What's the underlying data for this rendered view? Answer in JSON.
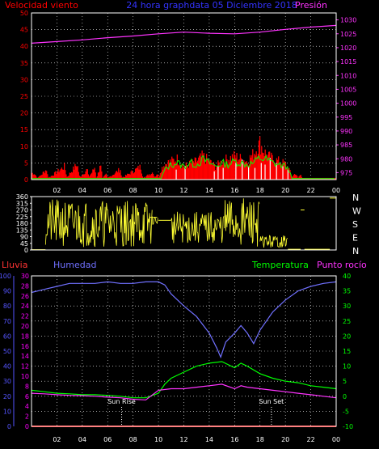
{
  "colors": {
    "background": "#000000",
    "frame": "#ffffff",
    "grid": "#ffffff",
    "wind": "#ff0000",
    "gust": "#ffffff",
    "avg": "#00ff00",
    "pressure": "#ff33ff",
    "direction": "#ffff33",
    "rain": "#ff0000",
    "humidity": "#7070ff",
    "temperature": "#00ff00",
    "dewpoint": "#ff33ff",
    "left_axis": "#5555ff",
    "hum_axis": "#ff00ff",
    "temp_axis": "#00ff00",
    "events": "#ffffff"
  },
  "header": {
    "wind_label": "Velocidad viento",
    "title": "24 hora graphdata  05 Diciembre  2018",
    "pressure_label": "Presión"
  },
  "panel3_header": {
    "rain_label": "Lluvia",
    "humidity_label": "Humedad",
    "temp_label": "Temperatura",
    "dew_label": "Punto rocío"
  },
  "events": {
    "sunrise_label": "Sun Rise",
    "sunset_label": "Sun Set",
    "sunrise_hour": 7.1,
    "sunset_hour": 18.9
  },
  "chart_data": [
    {
      "type": "line",
      "name": "wind-pressure",
      "x_range": [
        0,
        24
      ],
      "x_ticks": [
        "02",
        "04",
        "06",
        "08",
        "10",
        "12",
        "14",
        "16",
        "18",
        "20",
        "22",
        "00"
      ],
      "y_left": {
        "range": [
          0,
          50
        ],
        "ticks": [
          0,
          5,
          10,
          15,
          20,
          25,
          30,
          35,
          40,
          45,
          50
        ]
      },
      "y_right": {
        "range": [
          972.5,
          1032.5
        ],
        "ticks": [
          975,
          980,
          985,
          990,
          995,
          1000,
          1005,
          1010,
          1015,
          1020,
          1025,
          1030
        ]
      },
      "grid": true,
      "pressure": {
        "x": [
          0,
          2,
          4,
          6,
          8,
          10,
          12,
          14,
          16,
          18,
          20,
          22,
          24
        ],
        "y": [
          1021.6,
          1022.2,
          1022.8,
          1023.6,
          1024.2,
          1025.0,
          1025.6,
          1025.2,
          1025.0,
          1025.6,
          1026.6,
          1027.4,
          1028.0
        ]
      },
      "wind_max": [
        [
          0.2,
          2.5
        ],
        [
          0.5,
          0.5
        ],
        [
          1.2,
          4
        ],
        [
          1.3,
          0.5
        ],
        [
          2.6,
          5
        ],
        [
          2.8,
          1
        ],
        [
          3.6,
          6
        ],
        [
          3.8,
          0.8
        ],
        [
          4.4,
          4
        ],
        [
          4.5,
          1
        ],
        [
          4.8,
          3
        ],
        [
          5,
          5
        ],
        [
          5.1,
          0.5
        ],
        [
          5.3,
          3
        ],
        [
          5.4,
          6.5
        ],
        [
          5.6,
          0.5
        ],
        [
          5.9,
          2
        ],
        [
          6,
          0.5
        ],
        [
          7,
          4
        ],
        [
          7.1,
          0.5
        ],
        [
          8.6,
          5
        ],
        [
          8.8,
          0.5
        ],
        [
          9.6,
          3
        ],
        [
          9.7,
          0.5
        ],
        [
          9.9,
          2.5
        ],
        [
          10,
          0.5
        ],
        [
          10.2,
          4
        ],
        [
          10.5,
          6
        ],
        [
          11,
          7
        ],
        [
          11.5,
          8
        ],
        [
          12,
          5
        ],
        [
          12.5,
          6
        ],
        [
          13,
          7
        ],
        [
          13.5,
          9
        ],
        [
          14,
          7
        ],
        [
          14.5,
          5
        ],
        [
          15,
          7
        ],
        [
          15.5,
          8
        ],
        [
          16,
          9
        ],
        [
          16.5,
          8
        ],
        [
          17,
          7
        ],
        [
          17.5,
          10
        ],
        [
          18,
          14
        ],
        [
          18.3,
          11
        ],
        [
          18.6,
          9
        ],
        [
          19,
          8
        ],
        [
          19.5,
          7
        ],
        [
          20,
          6
        ],
        [
          20.3,
          4
        ],
        [
          20.5,
          1
        ],
        [
          20.8,
          2.5
        ],
        [
          21,
          0.5
        ],
        [
          21.2,
          2
        ],
        [
          21.3,
          0.5
        ],
        [
          24,
          0.5
        ]
      ],
      "wind_avg": [
        [
          0,
          0.3
        ],
        [
          10.2,
          0.3
        ],
        [
          10.5,
          3
        ],
        [
          11,
          4.5
        ],
        [
          11.5,
          5
        ],
        [
          12,
          4
        ],
        [
          12.5,
          5
        ],
        [
          13,
          4.5
        ],
        [
          13.5,
          6
        ],
        [
          14,
          5
        ],
        [
          14.5,
          4
        ],
        [
          15,
          5
        ],
        [
          15.5,
          4.5
        ],
        [
          16,
          5.5
        ],
        [
          16.5,
          5
        ],
        [
          17,
          4.5
        ],
        [
          17.5,
          5
        ],
        [
          18,
          6.5
        ],
        [
          18.5,
          6
        ],
        [
          19,
          5
        ],
        [
          19.5,
          4.5
        ],
        [
          20,
          4
        ],
        [
          20.3,
          3
        ],
        [
          20.5,
          0.3
        ],
        [
          24,
          0.3
        ]
      ],
      "gust_spikes": [
        [
          11.4,
          3
        ],
        [
          12.1,
          4
        ],
        [
          14.4,
          2.5
        ],
        [
          14.7,
          4
        ],
        [
          15.1,
          3.5
        ],
        [
          16.1,
          5
        ],
        [
          16.6,
          6
        ],
        [
          17.1,
          4
        ],
        [
          17.6,
          3.5
        ],
        [
          18.1,
          5
        ],
        [
          18.4,
          4.5
        ],
        [
          18.8,
          6.5
        ],
        [
          19.3,
          5
        ],
        [
          19.8,
          4
        ],
        [
          20.2,
          3
        ]
      ]
    },
    {
      "type": "line",
      "name": "wind-direction",
      "x_range": [
        0,
        24
      ],
      "y_range": [
        0,
        360
      ],
      "y_ticks": [
        0,
        45,
        90,
        135,
        180,
        225,
        270,
        315,
        360
      ],
      "compass_labels": [
        "N",
        "W",
        "S",
        "E",
        "N"
      ],
      "segments": [
        {
          "from": 1.1,
          "to": 9.5,
          "min": 20,
          "max": 340
        },
        {
          "from": 9.5,
          "to": 10.0,
          "min": 170,
          "max": 230
        },
        {
          "from": 11.0,
          "to": 15.2,
          "min": 40,
          "max": 260
        },
        {
          "from": 15.2,
          "to": 18.0,
          "min": 20,
          "max": 350
        },
        {
          "from": 18.0,
          "to": 20.2,
          "min": 15,
          "max": 100
        }
      ],
      "hold_levels": [
        {
          "from": 0,
          "to": 1.1,
          "value": 2
        },
        {
          "from": 9.3,
          "to": 9.9,
          "value": 220
        },
        {
          "from": 10.0,
          "to": 11.0,
          "value": 200
        },
        {
          "from": 20.2,
          "to": 21.2,
          "value": 5
        },
        {
          "from": 21.2,
          "to": 21.5,
          "value": 270
        },
        {
          "from": 21.5,
          "to": 23.5,
          "value": 5
        },
        {
          "from": 23.5,
          "to": 24,
          "value": 350
        }
      ]
    },
    {
      "type": "line",
      "name": "rain-humidity-temperature",
      "x_range": [
        0,
        24
      ],
      "x_ticks": [
        "02",
        "04",
        "06",
        "08",
        "10",
        "12",
        "14",
        "16",
        "18",
        "20",
        "22",
        "00"
      ],
      "rain_axis": {
        "range": [
          0,
          100
        ],
        "ticks": [
          0,
          10,
          20,
          30,
          40,
          50,
          60,
          70,
          80,
          90,
          100
        ]
      },
      "humidity_axis": {
        "range": [
          0,
          30
        ],
        "ticks": [
          0,
          2,
          4,
          6,
          8,
          10,
          12,
          14,
          16,
          18,
          20,
          22,
          24,
          26,
          28,
          30
        ]
      },
      "temperature_axis": {
        "range": [
          -10,
          40
        ],
        "ticks": [
          -10,
          -5,
          0,
          5,
          10,
          15,
          20,
          25,
          30,
          35,
          40
        ]
      },
      "grid": true,
      "rain": {
        "x": [
          0,
          24
        ],
        "y": [
          0,
          0
        ]
      },
      "humidity": {
        "x": [
          0,
          1,
          2,
          3,
          4,
          5,
          6,
          7,
          8,
          9,
          10,
          10.5,
          11,
          12,
          13,
          14,
          14.6,
          14.9,
          15.3,
          16,
          16.5,
          17,
          17.5,
          18,
          19,
          20,
          21,
          22,
          23,
          24
        ],
        "y": [
          89,
          91,
          93,
          95,
          95,
          95,
          96,
          95,
          95,
          96,
          96,
          94,
          88,
          80,
          73,
          62,
          52,
          46,
          56,
          62,
          67,
          62,
          55,
          64,
          76,
          84,
          90,
          93,
          95,
          96
        ]
      },
      "temperature": {
        "x": [
          0,
          1,
          2,
          3,
          4,
          5,
          6,
          7,
          8,
          9,
          10,
          10.5,
          11,
          12,
          13,
          14,
          15,
          16,
          16.5,
          17,
          18,
          19,
          20,
          21,
          22,
          23,
          24
        ],
        "y": [
          2.0,
          1.5,
          1.0,
          0.8,
          0.5,
          0.5,
          0.3,
          0.0,
          -0.5,
          -0.5,
          1.0,
          4.0,
          6.0,
          8.0,
          10.0,
          11.0,
          11.5,
          9.5,
          11.0,
          10.0,
          7.5,
          6.0,
          5.0,
          4.5,
          3.5,
          3.0,
          2.5
        ]
      },
      "dew_point": {
        "x": [
          0,
          1,
          2,
          3,
          4,
          5,
          6,
          7,
          8,
          9,
          10,
          11,
          12,
          13,
          14,
          15,
          16,
          16.5,
          17,
          18,
          19,
          20,
          21,
          22,
          23,
          24
        ],
        "y": [
          1.0,
          0.8,
          0.5,
          0.3,
          0.2,
          0.0,
          -0.3,
          -0.5,
          -1.0,
          -1.2,
          2.0,
          2.5,
          2.5,
          3.0,
          3.5,
          4.0,
          2.5,
          3.5,
          3.0,
          2.5,
          2.0,
          1.5,
          1.0,
          0.5,
          0.0,
          -0.5
        ]
      }
    }
  ]
}
